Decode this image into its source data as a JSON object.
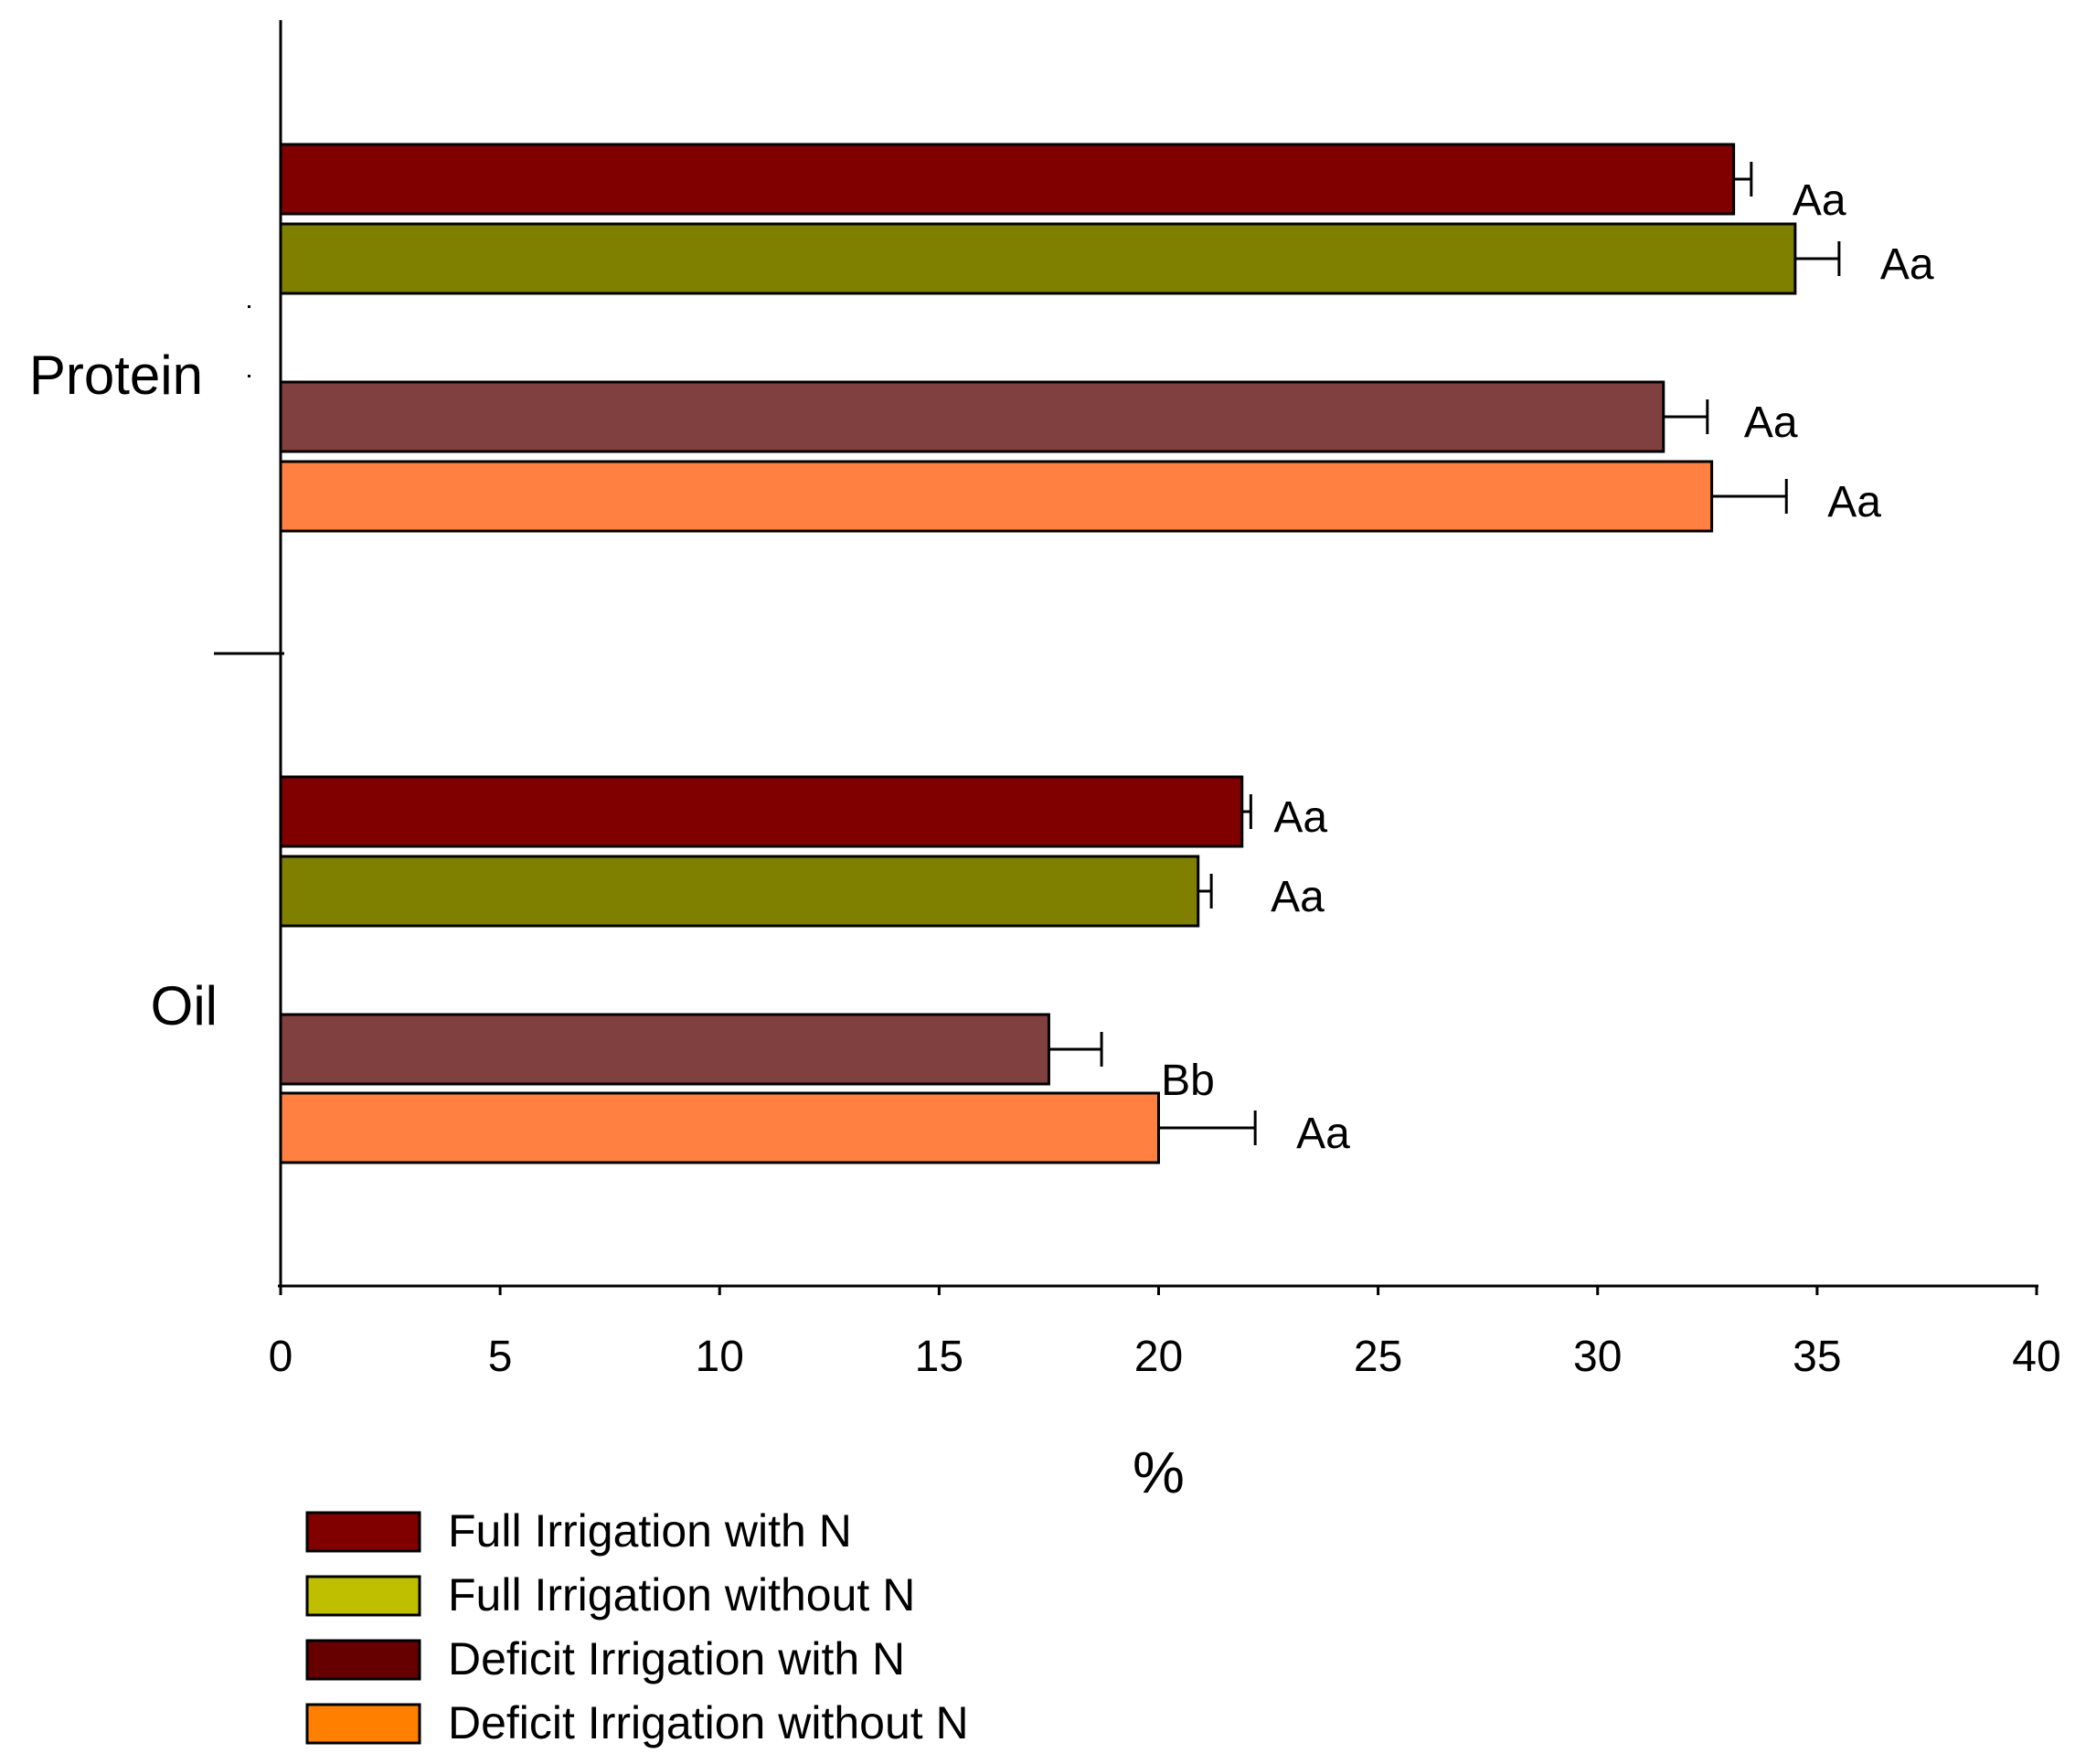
{
  "chart_data": {
    "type": "bar",
    "orientation": "horizontal",
    "title": "",
    "xlabel": "%",
    "ylabel": "",
    "xlim": [
      0,
      40
    ],
    "xticks": [
      0,
      5,
      10,
      15,
      20,
      25,
      30,
      35,
      40
    ],
    "categories": [
      "Protein",
      "Oil"
    ],
    "series": [
      {
        "name": "Full Irrigation with N",
        "bar_color": "#800000",
        "legend_color": "#800000",
        "values": [
          33.1,
          21.9
        ],
        "errors": [
          0.4,
          0.2
        ],
        "labels": [
          "Aa",
          "Aa"
        ]
      },
      {
        "name": "Full Irrigation without N",
        "bar_color": "#808000",
        "legend_color": "#BFBF00",
        "values": [
          34.5,
          20.9
        ],
        "errors": [
          1.0,
          0.3
        ],
        "labels": [
          "Aa",
          "Aa"
        ]
      },
      {
        "name": "Deficit Irrigation with N",
        "bar_color": "#804040",
        "legend_color": "#660000",
        "values": [
          31.5,
          17.5
        ],
        "errors": [
          1.0,
          1.2
        ],
        "labels": [
          "Aa",
          "Bb"
        ]
      },
      {
        "name": "Deficit Irrigation without N",
        "bar_color": "#FF8040",
        "legend_color": "#FF8000",
        "values": [
          32.6,
          20.0
        ],
        "errors": [
          1.7,
          2.2
        ],
        "labels": [
          "Aa",
          "Aa"
        ]
      }
    ],
    "legend_position": "bottom-left",
    "grid": false
  }
}
